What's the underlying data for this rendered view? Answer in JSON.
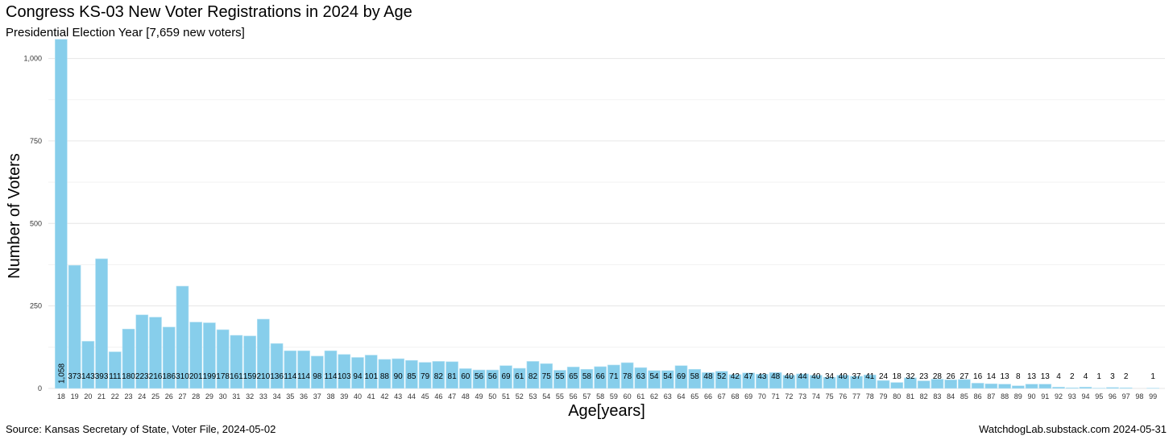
{
  "title": "Congress KS-03 New Voter Registrations in 2024 by Age",
  "subtitle": "Presidential Election Year [7,659 new voters]",
  "caption_left": "Source:  Kansas Secretary of State, Voter File, 2024-05-02",
  "caption_right": "WatchdogLab.substack.com 2024-05-31",
  "colors": {
    "bar": "#87CEEB",
    "grid": "#e6e6e6"
  },
  "chart_data": {
    "type": "bar",
    "xlabel": "Age[years]",
    "ylabel": "Number of Voters",
    "ylim": [
      0,
      1060
    ],
    "yticks": [
      0,
      250,
      500,
      750,
      1000
    ],
    "ytick_labels": [
      "0",
      "250",
      "500",
      "750",
      "1,000"
    ],
    "grid": true,
    "categories": [
      "18",
      "19",
      "20",
      "21",
      "22",
      "23",
      "24",
      "25",
      "26",
      "27",
      "28",
      "29",
      "30",
      "31",
      "32",
      "33",
      "34",
      "35",
      "36",
      "37",
      "38",
      "39",
      "40",
      "41",
      "42",
      "43",
      "44",
      "45",
      "46",
      "47",
      "48",
      "49",
      "50",
      "51",
      "52",
      "53",
      "54",
      "55",
      "56",
      "57",
      "58",
      "59",
      "60",
      "61",
      "62",
      "63",
      "64",
      "65",
      "66",
      "67",
      "68",
      "69",
      "70",
      "71",
      "72",
      "73",
      "74",
      "75",
      "76",
      "77",
      "78",
      "79",
      "80",
      "81",
      "82",
      "83",
      "84",
      "85",
      "86",
      "87",
      "88",
      "89",
      "90",
      "91",
      "92",
      "93",
      "94",
      "95",
      "96",
      "97",
      "98",
      "99"
    ],
    "values": [
      1058,
      373,
      143,
      393,
      111,
      180,
      223,
      216,
      186,
      310,
      201,
      199,
      178,
      161,
      159,
      210,
      136,
      114,
      114,
      98,
      114,
      103,
      94,
      101,
      88,
      90,
      85,
      79,
      82,
      81,
      60,
      56,
      56,
      69,
      61,
      82,
      75,
      55,
      65,
      58,
      66,
      71,
      78,
      63,
      54,
      54,
      69,
      58,
      48,
      52,
      42,
      47,
      43,
      48,
      40,
      44,
      40,
      34,
      40,
      37,
      41,
      24,
      18,
      32,
      23,
      28,
      26,
      27,
      16,
      14,
      13,
      8,
      13,
      13,
      4,
      2,
      4,
      1,
      3,
      2,
      0,
      1
    ],
    "data_labels": [
      "1,058",
      "373",
      "143",
      "393",
      "111",
      "180",
      "223",
      "216",
      "186",
      "310",
      "201",
      "199",
      "178",
      "161",
      "159",
      "210",
      "136",
      "114",
      "114",
      "98",
      "114",
      "103",
      "94",
      "101",
      "88",
      "90",
      "85",
      "79",
      "82",
      "81",
      "60",
      "56",
      "56",
      "69",
      "61",
      "82",
      "75",
      "55",
      "65",
      "58",
      "66",
      "71",
      "78",
      "63",
      "54",
      "54",
      "69",
      "58",
      "48",
      "52",
      "42",
      "47",
      "43",
      "48",
      "40",
      "44",
      "40",
      "34",
      "40",
      "37",
      "41",
      "24",
      "18",
      "32",
      "23",
      "28",
      "26",
      "27",
      "16",
      "14",
      "13",
      "8",
      "13",
      "13",
      "4",
      "2",
      "4",
      "1",
      "3",
      "2",
      "",
      "1"
    ]
  }
}
